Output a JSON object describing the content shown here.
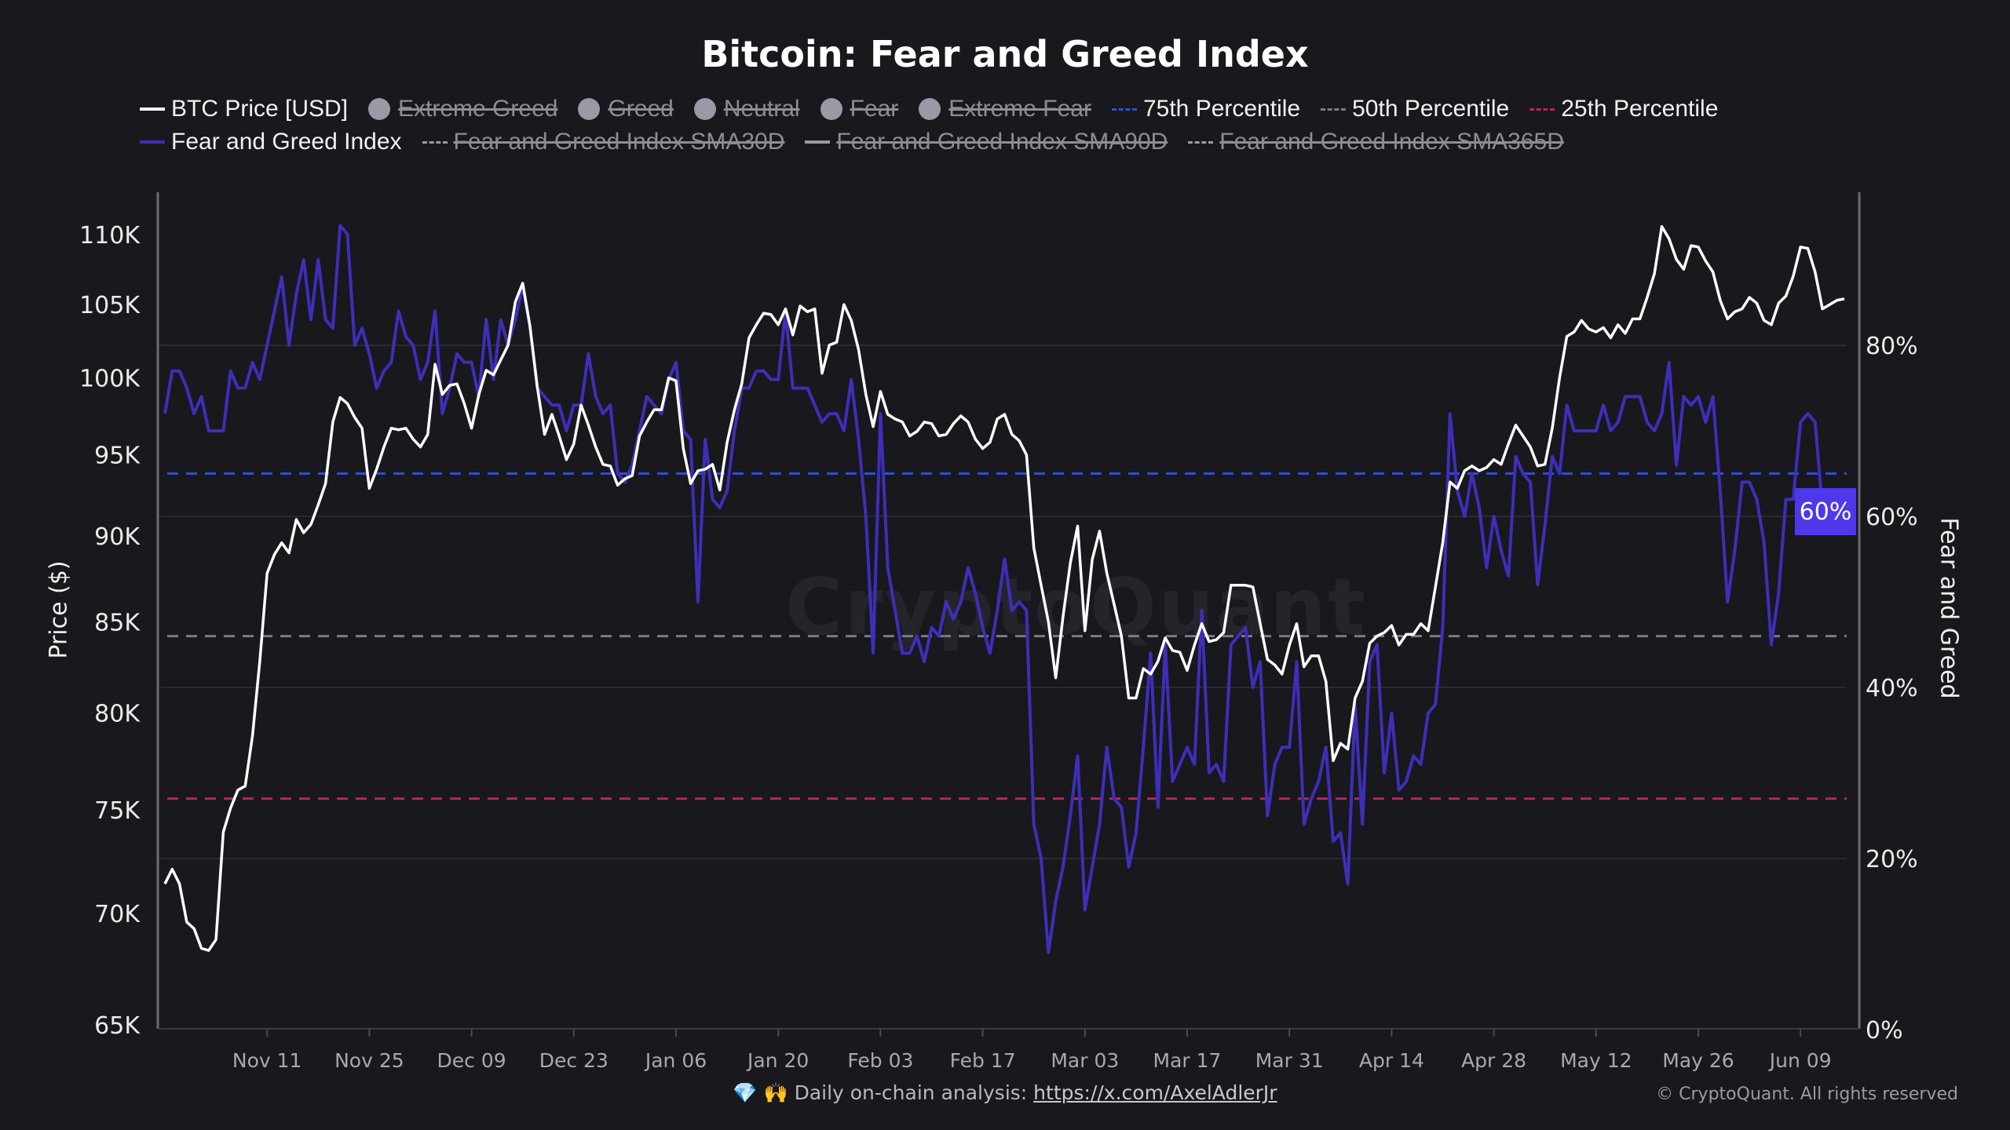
{
  "title": "Bitcoin: Fear and Greed Index",
  "legend": {
    "row1": [
      {
        "label": "BTC Price [USD]",
        "type": "line",
        "color": "#ffffff",
        "active": true
      },
      {
        "label": "Extreme Greed",
        "type": "dot",
        "color": "#9a9aa6",
        "active": false
      },
      {
        "label": "Greed",
        "type": "dot",
        "color": "#9a9aa6",
        "active": false
      },
      {
        "label": "Neutral",
        "type": "dot",
        "color": "#9a9aa6",
        "active": false
      },
      {
        "label": "Fear",
        "type": "dot",
        "color": "#9a9aa6",
        "active": false
      },
      {
        "label": "Extreme Fear",
        "type": "dot",
        "color": "#9a9aa6",
        "active": false
      },
      {
        "label": "75th Percentile",
        "type": "dashed",
        "color": "#2b4fd6",
        "active": true
      },
      {
        "label": "50th Percentile",
        "type": "dashed",
        "color": "#7b7b85",
        "active": true
      },
      {
        "label": "25th Percentile",
        "type": "dashed",
        "color": "#b8265e",
        "active": true
      }
    ],
    "row2": [
      {
        "label": "Fear and Greed Index",
        "type": "line",
        "color": "#3d2fb8",
        "active": true
      },
      {
        "label": "Fear and Greed Index SMA30D",
        "type": "dashdot",
        "color": "#9a9aa6",
        "active": false
      },
      {
        "label": "Fear and Greed Index SMA90D",
        "type": "line",
        "color": "#9a9aa6",
        "active": false
      },
      {
        "label": "Fear and Greed Index SMA365D",
        "type": "dashdot",
        "color": "#9a9aa6",
        "active": false
      }
    ]
  },
  "current_badge": "60%",
  "watermark": "CryptoQuant",
  "footer": {
    "emoji": "💎 🙌",
    "text": "Daily on-chain analysis: ",
    "link": "https://x.com/AxelAdlerJr",
    "copyright": "© CryptoQuant. All rights reserved"
  },
  "chart_data": {
    "type": "line",
    "title": "Bitcoin: Fear and Greed Index",
    "xlabel": "",
    "ylabel": "Price ($)",
    "y2label": "Fear and Greed",
    "start_date": "2024-10-28",
    "interval_days": 1,
    "x_ticks": {
      "labels": [
        "Nov 11",
        "Nov 25",
        "Dec 09",
        "Dec 23",
        "Jan 06",
        "Jan 20",
        "Feb 03",
        "Feb 17",
        "Mar 03",
        "Mar 17",
        "Mar 31",
        "Apr 14",
        "Apr 28",
        "May 12",
        "May 26",
        "Jun 09"
      ],
      "first_day_index": 14,
      "step_days": 14
    },
    "y_axis": {
      "scale": "log",
      "range_k": [
        65,
        112
      ],
      "ticks": [
        65,
        70,
        75,
        80,
        85,
        90,
        95,
        100,
        105,
        110
      ],
      "tick_labels": [
        "65K",
        "70K",
        "75K",
        "80K",
        "85K",
        "90K",
        "95K",
        "100K",
        "105K",
        "110K"
      ]
    },
    "y2_axis": {
      "scale": "linear",
      "range": [
        0,
        95
      ],
      "ticks": [
        0,
        20,
        40,
        60,
        80
      ],
      "tick_labels": [
        "0%",
        "20%",
        "40%",
        "60%",
        "80%"
      ]
    },
    "grid": true,
    "legend_position": "top",
    "percentiles": [
      {
        "name": "75th Percentile",
        "value": 65,
        "color": "#2b4fd6"
      },
      {
        "name": "50th Percentile",
        "value": 46,
        "color": "#7b7b85"
      },
      {
        "name": "25th Percentile",
        "value": 27,
        "color": "#b8265e"
      }
    ],
    "series": [
      {
        "name": "BTC Price [USD]",
        "axis": "left",
        "unit": "thousand USD",
        "color": "#ffffff",
        "values": [
          71.4,
          72.1,
          71.4,
          69.6,
          69.3,
          68.4,
          68.3,
          68.8,
          73.9,
          75.1,
          76.0,
          76.2,
          78.8,
          82.8,
          87.8,
          88.9,
          89.6,
          89.0,
          91.0,
          90.2,
          90.7,
          91.9,
          93.2,
          97.1,
          98.7,
          98.3,
          97.4,
          96.7,
          92.9,
          94.1,
          95.5,
          96.7,
          96.6,
          96.7,
          96.0,
          95.5,
          96.3,
          100.9,
          98.9,
          99.5,
          99.6,
          98.3,
          96.7,
          98.9,
          100.5,
          100.2,
          101.2,
          102.2,
          105.2,
          106.5,
          103.5,
          99.4,
          96.3,
          97.6,
          96.2,
          94.7,
          95.7,
          98.2,
          96.9,
          95.5,
          94.4,
          94.3,
          93.1,
          93.5,
          93.7,
          96.2,
          97.1,
          97.9,
          97.9,
          100.0,
          99.8,
          95.4,
          93.2,
          94.0,
          94.1,
          94.4,
          92.8,
          95.8,
          97.9,
          99.6,
          102.7,
          103.6,
          104.4,
          104.3,
          103.6,
          104.7,
          102.9,
          104.9,
          104.5,
          104.7,
          100.3,
          102.2,
          102.4,
          105.0,
          103.9,
          101.9,
          98.9,
          96.8,
          99.1,
          97.6,
          97.3,
          97.1,
          96.2,
          96.5,
          97.1,
          97.0,
          96.2,
          96.3,
          97.0,
          97.5,
          97.1,
          96.0,
          95.4,
          95.8,
          97.3,
          97.6,
          96.3,
          95.9,
          95.0,
          89.3,
          87.1,
          85.0,
          81.9,
          85.3,
          88.4,
          90.6,
          84.5,
          88.6,
          90.3,
          87.8,
          86.0,
          84.2,
          80.8,
          80.8,
          82.4,
          82.1,
          82.8,
          84.1,
          83.4,
          83.3,
          82.3,
          83.7,
          84.9,
          83.9,
          84.0,
          84.4,
          87.1,
          87.1,
          87.1,
          87.0,
          84.9,
          82.9,
          82.6,
          82.1,
          83.7,
          84.9,
          82.5,
          83.1,
          83.1,
          81.7,
          77.5,
          78.4,
          78.1,
          80.8,
          81.7,
          83.8,
          84.2,
          84.4,
          84.8,
          83.7,
          84.3,
          84.3,
          84.9,
          84.5,
          87.0,
          89.6,
          93.3,
          92.9,
          94.0,
          94.3,
          94.0,
          94.2,
          94.7,
          94.4,
          95.7,
          96.9,
          96.2,
          95.5,
          94.3,
          94.4,
          96.7,
          100.0,
          102.8,
          103.1,
          103.9,
          103.3,
          103.1,
          103.4,
          102.7,
          103.6,
          103.0,
          104.0,
          104.0,
          105.5,
          107.2,
          110.6,
          109.7,
          108.2,
          107.5,
          109.2,
          109.1,
          108.1,
          107.3,
          105.3,
          104.0,
          104.5,
          104.7,
          105.5,
          105.1,
          103.9,
          103.6,
          105.1,
          105.6,
          107.0,
          109.1,
          109.0,
          107.3,
          104.7,
          105.0,
          105.3,
          105.4
        ]
      },
      {
        "name": "Fear and Greed Index",
        "axis": "right",
        "unit": "%",
        "color": "#3d2fb8",
        "values": [
          72,
          77,
          77,
          75,
          72,
          74,
          70,
          70,
          70,
          77,
          75,
          75,
          78,
          76,
          80,
          84,
          88,
          80,
          86,
          90,
          83,
          90,
          83,
          82,
          94,
          93,
          80,
          82,
          79,
          75,
          77,
          78,
          84,
          81,
          80,
          76,
          78,
          84,
          72,
          75,
          79,
          78,
          78,
          74,
          83,
          76,
          83,
          80,
          83,
          87,
          82,
          75,
          74,
          73,
          73,
          70,
          73,
          73,
          79,
          74,
          72,
          73,
          65,
          64,
          66,
          70,
          74,
          73,
          72,
          76,
          78,
          70,
          69,
          50,
          69,
          62,
          61,
          63,
          70,
          75,
          75,
          77,
          77,
          76,
          76,
          84,
          75,
          75,
          75,
          73,
          71,
          72,
          72,
          70,
          76,
          69,
          60,
          44,
          72,
          54,
          49,
          44,
          44,
          46,
          43,
          47,
          46,
          50,
          48,
          50,
          54,
          51,
          47,
          44,
          49,
          55,
          49,
          50,
          49,
          24,
          20,
          9,
          15,
          19,
          25,
          32,
          14,
          19,
          24,
          33,
          27,
          26,
          19,
          23,
          33,
          44,
          26,
          45,
          29,
          31,
          33,
          31,
          49,
          30,
          31,
          29,
          45,
          46,
          47,
          40,
          43,
          25,
          31,
          33,
          33,
          43,
          24,
          27,
          29,
          33,
          22,
          23,
          17,
          38,
          24,
          43,
          45,
          30,
          37,
          28,
          29,
          32,
          31,
          37,
          38,
          47,
          72,
          63,
          60,
          65,
          61,
          54,
          60,
          56,
          53,
          67,
          65,
          64,
          52,
          59,
          67,
          65,
          73,
          70,
          70,
          70,
          70,
          73,
          70,
          71,
          74,
          74,
          74,
          71,
          70,
          72,
          78,
          66,
          74,
          73,
          74,
          71,
          74,
          63,
          50,
          56,
          64,
          64,
          62,
          57,
          45,
          51,
          62,
          62,
          71,
          72,
          71,
          61,
          63,
          60,
          60
        ]
      }
    ]
  }
}
